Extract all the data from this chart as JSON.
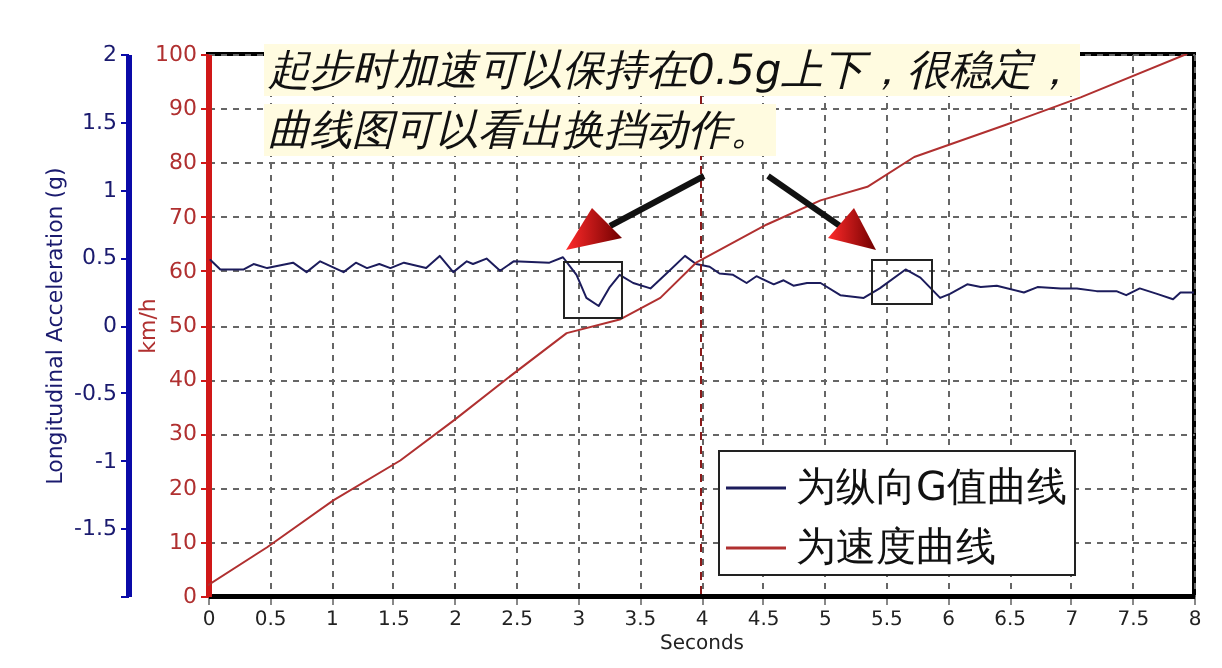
{
  "chart_data": {
    "type": "line",
    "xlabel": "Seconds",
    "ylabel": "Longitudinal Acceleration (g)",
    "y2label": "km/h",
    "annotations": [
      "起步时加速可以保持在0.5g上下，很稳定，",
      "曲线图可以看出换挡动作。"
    ],
    "xlim": [
      0,
      8
    ],
    "xticks": [
      0,
      0.5,
      1,
      1.5,
      2,
      2.5,
      3,
      3.5,
      4,
      4.5,
      5,
      5.5,
      6,
      6.5,
      7,
      7.5,
      8
    ],
    "ylim": [
      -2,
      2
    ],
    "yticks": [
      {
        "value": -2,
        "label": null
      },
      -1.5,
      -1,
      -0.5,
      0,
      0.5,
      1,
      1.5,
      2
    ],
    "y2lim": [
      0,
      100
    ],
    "y2ticks": [
      0,
      10,
      20,
      30,
      40,
      50,
      60,
      70,
      80,
      90,
      100
    ],
    "grid": true,
    "legend": "bottom right",
    "ref_lines": [
      {
        "axis": "x",
        "value": 4,
        "color": "#8b1a1a",
        "line_style": "dashed"
      }
    ],
    "series": [
      {
        "name": "为纵向G值曲线",
        "color": "#1c1c5c",
        "type": "line",
        "axis": "y",
        "x": [
          0.02,
          0.1,
          0.29,
          0.37,
          0.48,
          0.69,
          0.8,
          0.91,
          1.1,
          1.2,
          1.29,
          1.39,
          1.48,
          1.59,
          1.77,
          1.88,
          1.99,
          2.1,
          2.15,
          2.26,
          2.37,
          2.48,
          2.77,
          2.88,
          2.99,
          3.07,
          3.17,
          3.26,
          3.34,
          3.45,
          3.59,
          3.72,
          3.87,
          3.96,
          4.07,
          4.15,
          4.26,
          4.37,
          4.45,
          4.59,
          4.67,
          4.75,
          4.86,
          4.97,
          5.13,
          5.32,
          5.45,
          5.66,
          5.78,
          5.94,
          6.02,
          6.16,
          6.27,
          6.4,
          6.62,
          6.73,
          6.92,
          7.05,
          7.21,
          7.37,
          7.45,
          7.56,
          7.7,
          7.83,
          7.89,
          8.0
        ],
        "values": [
          0.48,
          0.41,
          0.41,
          0.45,
          0.42,
          0.46,
          0.39,
          0.47,
          0.39,
          0.46,
          0.42,
          0.45,
          0.42,
          0.46,
          0.42,
          0.51,
          0.39,
          0.47,
          0.45,
          0.49,
          0.4,
          0.47,
          0.46,
          0.5,
          0.37,
          0.2,
          0.14,
          0.28,
          0.37,
          0.31,
          0.27,
          0.38,
          0.51,
          0.45,
          0.43,
          0.38,
          0.37,
          0.31,
          0.36,
          0.3,
          0.33,
          0.29,
          0.31,
          0.31,
          0.22,
          0.2,
          0.27,
          0.41,
          0.35,
          0.2,
          0.23,
          0.3,
          0.28,
          0.29,
          0.24,
          0.28,
          0.27,
          0.27,
          0.25,
          0.25,
          0.22,
          0.27,
          0.23,
          0.19,
          0.24,
          0.24
        ]
      },
      {
        "name": "为速度曲线",
        "color": "#b03030",
        "type": "line",
        "axis": "y2",
        "x": [
          0,
          0.48,
          1.02,
          1.56,
          2.0,
          2.42,
          2.91,
          3.34,
          3.67,
          3.96,
          4.53,
          4.97,
          5.35,
          5.73,
          6.48,
          7.08,
          7.94
        ],
        "values": [
          2,
          9,
          17.7,
          25,
          32.5,
          40,
          48.5,
          51,
          55,
          61.5,
          68.5,
          73,
          75.5,
          81,
          87,
          92,
          100
        ]
      }
    ]
  }
}
